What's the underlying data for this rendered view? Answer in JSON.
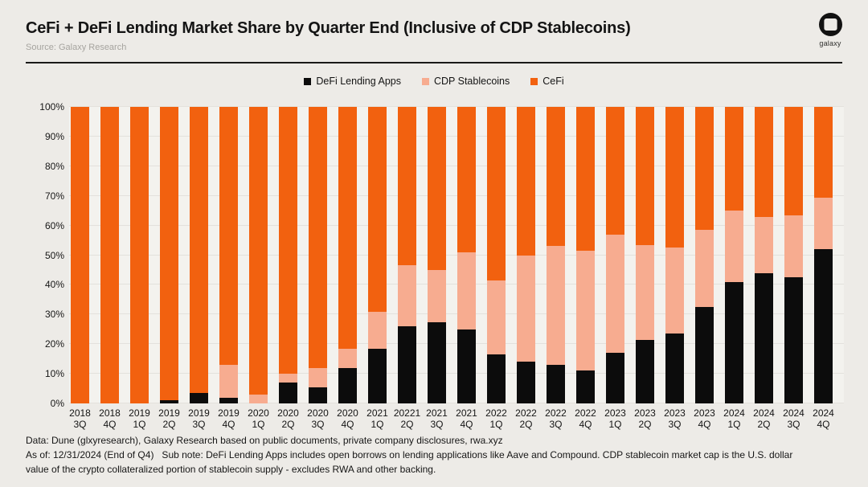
{
  "header": {
    "title": "CeFi + DeFi Lending Market Share by Quarter End (Inclusive of CDP Stablecoins)",
    "source": "Source: Galaxy Research",
    "logo_text": "galaxy"
  },
  "colors": {
    "defi": "#0C0C0C",
    "cdp": "#F7AC90",
    "cefi": "#F2610F",
    "page_bg": "#EDEBE7",
    "plot_bg": "#F3F2EE",
    "gridline": "#E3E1DC",
    "divider": "#1A1A19"
  },
  "chart_data": {
    "type": "bar",
    "stacked": true,
    "y_unit": "%",
    "ylim": [
      0,
      100
    ],
    "grid": true,
    "legend_position": "top-center",
    "y_ticks": [
      "100%",
      "90%",
      "80%",
      "70%",
      "60%",
      "50%",
      "40%",
      "30%",
      "20%",
      "10%",
      "0%"
    ],
    "categories": [
      {
        "year": "2018",
        "quarter": "3Q"
      },
      {
        "year": "2018",
        "quarter": "4Q"
      },
      {
        "year": "2019",
        "quarter": "1Q"
      },
      {
        "year": "2019",
        "quarter": "2Q"
      },
      {
        "year": "2019",
        "quarter": "3Q"
      },
      {
        "year": "2019",
        "quarter": "4Q"
      },
      {
        "year": "2020",
        "quarter": "1Q"
      },
      {
        "year": "2020",
        "quarter": "2Q"
      },
      {
        "year": "2020",
        "quarter": "3Q"
      },
      {
        "year": "2020",
        "quarter": "4Q"
      },
      {
        "year": "2021",
        "quarter": "1Q"
      },
      {
        "year": "20221",
        "quarter": "2Q"
      },
      {
        "year": "2021",
        "quarter": "3Q"
      },
      {
        "year": "2021",
        "quarter": "4Q"
      },
      {
        "year": "2022",
        "quarter": "1Q"
      },
      {
        "year": "2022",
        "quarter": "2Q"
      },
      {
        "year": "2022",
        "quarter": "3Q"
      },
      {
        "year": "2022",
        "quarter": "4Q"
      },
      {
        "year": "2023",
        "quarter": "1Q"
      },
      {
        "year": "2023",
        "quarter": "2Q"
      },
      {
        "year": "2023",
        "quarter": "3Q"
      },
      {
        "year": "2023",
        "quarter": "4Q"
      },
      {
        "year": "2024",
        "quarter": "1Q"
      },
      {
        "year": "2024",
        "quarter": "2Q"
      },
      {
        "year": "2024",
        "quarter": "3Q"
      },
      {
        "year": "2024",
        "quarter": "4Q"
      }
    ],
    "series": [
      {
        "name": "DeFi Lending Apps",
        "color_key": "defi",
        "values": [
          0,
          0,
          0,
          1,
          3.5,
          2,
          0,
          7,
          5.5,
          12,
          18.5,
          26,
          27.5,
          25,
          16.5,
          14,
          13,
          11,
          17,
          21.5,
          23.5,
          32.5,
          41,
          44,
          42.5,
          52
        ]
      },
      {
        "name": "CDP Stablecoins",
        "color_key": "cdp",
        "values": [
          0,
          0,
          0,
          0,
          0,
          11,
          3,
          3,
          6.5,
          6.5,
          12.5,
          20.5,
          17.5,
          26,
          25,
          36,
          40,
          40.5,
          40,
          32,
          29,
          26,
          24,
          19,
          21,
          17.5
        ]
      },
      {
        "name": "CeFi",
        "color_key": "cefi",
        "values": [
          100,
          100,
          100,
          99,
          96.5,
          87,
          97,
          90,
          88,
          81.5,
          69,
          53.5,
          55,
          49,
          58.5,
          50,
          47,
          48.5,
          43,
          46.5,
          47.5,
          41.5,
          35,
          37,
          36.5,
          30.5
        ]
      }
    ]
  },
  "footer": {
    "line1": "Data: Dune (glxyresearch), Galaxy Research based on public documents, private company disclosures, rwa.xyz",
    "line2": "As of: 12/31/2024 (End of Q4)   Sub note: DeFi Lending Apps includes open borrows on lending applications like Aave and Compound. CDP stablecoin market cap is the U.S. dollar",
    "line3": "value of the crypto collateralized portion of stablecoin supply - excludes RWA and other backing."
  }
}
